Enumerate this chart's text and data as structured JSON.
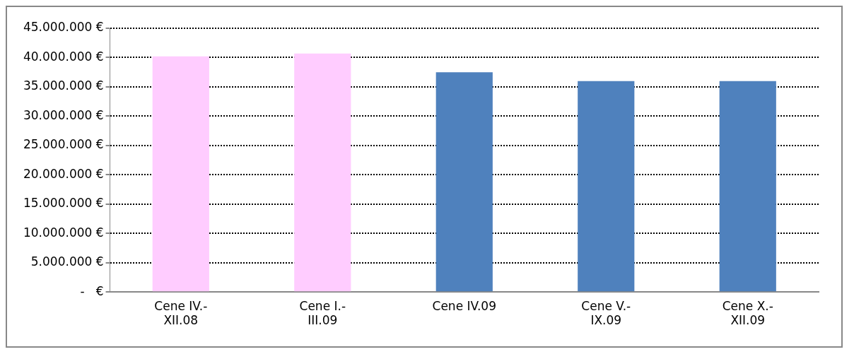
{
  "chart_data": {
    "type": "bar",
    "categories": [
      "Cene IV.- XII.08",
      "Cene I.- III.09",
      "Cene IV.09",
      "Cene V.- IX.09",
      "Cene X.- XII.09"
    ],
    "values": [
      40200000,
      40700000,
      37500000,
      36000000,
      36000000
    ],
    "colors": [
      "#ffccff",
      "#ffccff",
      "#4f81bd",
      "#4f81bd",
      "#4f81bd"
    ],
    "ylim": [
      0,
      45000000
    ],
    "yticks": [
      {
        "value": 0,
        "label": "-   €"
      },
      {
        "value": 5000000,
        "label": "5.000.000 €"
      },
      {
        "value": 10000000,
        "label": "10.000.000 €"
      },
      {
        "value": 15000000,
        "label": "15.000.000 €"
      },
      {
        "value": 20000000,
        "label": "20.000.000 €"
      },
      {
        "value": 25000000,
        "label": "25.000.000 €"
      },
      {
        "value": 30000000,
        "label": "30.000.000 €"
      },
      {
        "value": 35000000,
        "label": "35.000.000 €"
      },
      {
        "value": 40000000,
        "label": "40.000.000 €"
      },
      {
        "value": 45000000,
        "label": "45.000.000 €"
      }
    ],
    "grid": "y",
    "legend": false
  }
}
